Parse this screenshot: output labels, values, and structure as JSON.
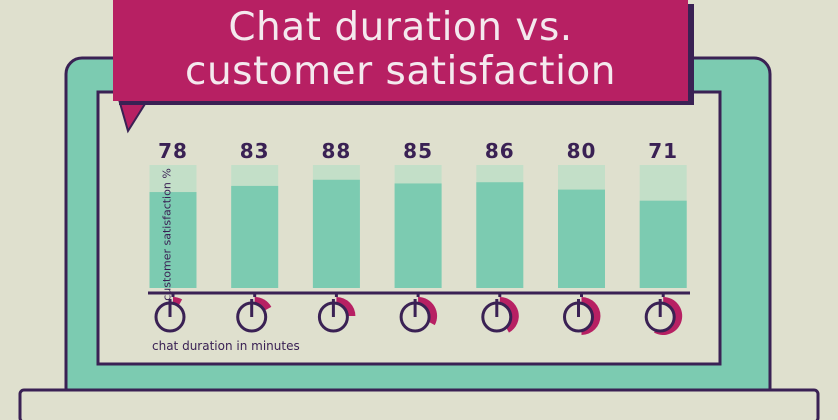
{
  "title": {
    "line1": "Chat duration vs.",
    "line2": "customer satisfaction"
  },
  "chart_data": {
    "type": "bar",
    "categories": [
      "1",
      "2",
      "3",
      "4",
      "5",
      "6",
      "7"
    ],
    "values": [
      78,
      83,
      88,
      85,
      86,
      80,
      71
    ],
    "ylabel": "customer satisfaction %",
    "xlabel": "chat duration in minutes",
    "ylim": [
      0,
      100
    ],
    "grid": false,
    "legend": "none",
    "duration_clock_fraction": [
      0.08,
      0.17,
      0.25,
      0.33,
      0.42,
      0.5,
      0.58
    ]
  },
  "colors": {
    "background": "#dfe0ce",
    "laptop_frame": "#7ccbb1",
    "outline": "#3a2154",
    "screen": "#dfe0ce",
    "title_bg": "#b72063",
    "bar": "#7ccbb1",
    "bar_track": "#c3dfc8",
    "clock_fill": "#b72063",
    "clock_face": "#dfe0ce"
  }
}
